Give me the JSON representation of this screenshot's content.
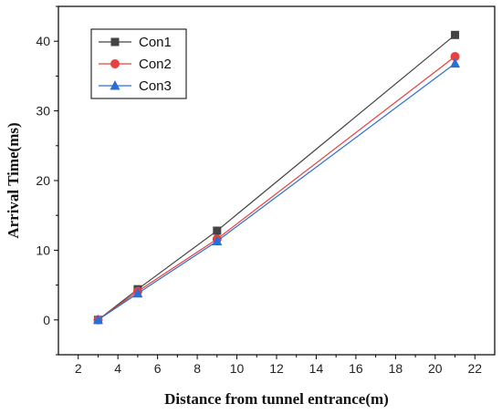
{
  "chart_data": {
    "type": "line",
    "xlabel": "Distance from tunnel entrance(m)",
    "ylabel": "Arrival Time(ms)",
    "xlim": [
      1,
      23
    ],
    "ylim": [
      -5,
      45
    ],
    "xticks": [
      2,
      4,
      6,
      8,
      10,
      12,
      14,
      16,
      18,
      20,
      22
    ],
    "yticks": [
      0,
      10,
      20,
      30,
      40
    ],
    "grid": false,
    "legend_position": "top-left",
    "series": [
      {
        "name": "Con1",
        "color": "#444444",
        "marker": "square",
        "x": [
          3,
          5,
          9,
          21
        ],
        "y": [
          0,
          4.4,
          12.8,
          40.9
        ]
      },
      {
        "name": "Con2",
        "color": "#e8403c",
        "marker": "circle",
        "x": [
          3,
          5,
          9,
          21
        ],
        "y": [
          0,
          4.1,
          11.6,
          37.8
        ]
      },
      {
        "name": "Con3",
        "color": "#2a6fd6",
        "marker": "triangle",
        "x": [
          3,
          5,
          9,
          21
        ],
        "y": [
          0,
          3.8,
          11.3,
          36.8
        ]
      }
    ]
  }
}
